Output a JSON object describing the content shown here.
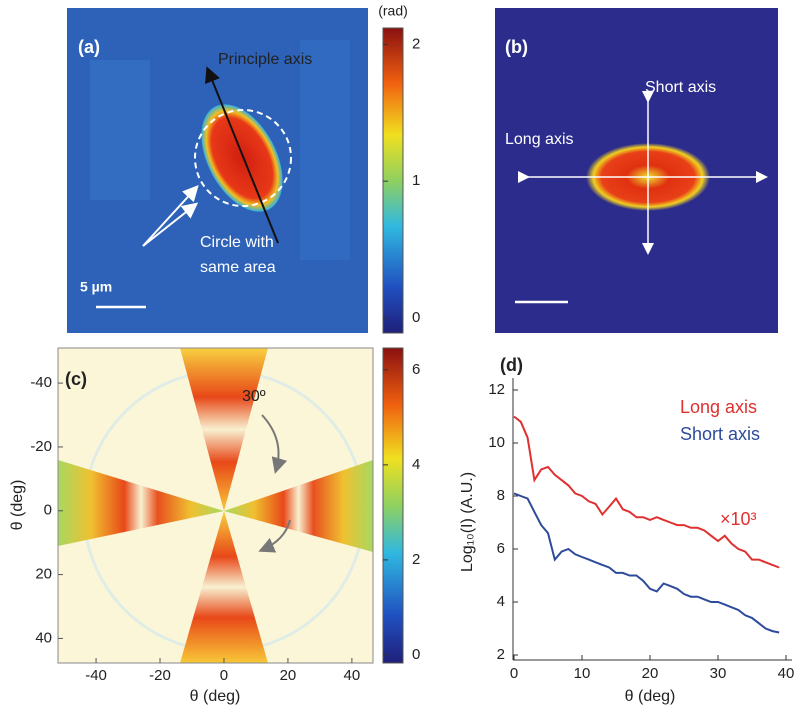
{
  "chart_data": [
    {
      "type": "image",
      "label": "(a)",
      "annotations": [
        "Principle axis",
        "Circle with",
        "same area"
      ],
      "scale_label": "5 µm",
      "colorbar": {
        "label": "(rad)",
        "lim": [
          -0.11,
          2.12
        ],
        "ticks": [
          0,
          1,
          2
        ]
      }
    },
    {
      "type": "image",
      "label": "(b)",
      "annotations": [
        "Short axis",
        "Long axis"
      ]
    },
    {
      "type": "heatmap",
      "label": "(c)",
      "xlabel": "θ (deg)",
      "ylabel": "θ (deg)",
      "xlim": [
        -51.9,
        46.6
      ],
      "ylim": [
        -51,
        47.7
      ],
      "xticks": [
        -40,
        -20,
        0,
        20,
        40
      ],
      "yticks": [
        -40,
        -20,
        0,
        20,
        40
      ],
      "annotation": "30º",
      "colorbar": {
        "lim": [
          -0.17,
          6.46
        ],
        "ticks": [
          0,
          2,
          4,
          6
        ]
      }
    },
    {
      "type": "line",
      "label": "(d)",
      "xlabel": "θ (deg)",
      "ylabel": "Log₁₀(I) (A.U.)",
      "annotation": "×10³",
      "xlim": [
        0,
        40
      ],
      "ylim": [
        2,
        12
      ],
      "xticks": [
        0,
        10,
        20,
        30,
        40
      ],
      "yticks": [
        2,
        4,
        6,
        8,
        10,
        12
      ],
      "x": [
        0,
        1,
        2,
        3,
        4,
        5,
        6,
        7,
        8,
        9,
        10,
        11,
        12,
        13,
        14,
        15,
        16,
        17,
        18,
        19,
        20,
        21,
        22,
        23,
        24,
        25,
        26,
        27,
        28,
        29,
        30,
        31,
        32,
        33,
        34,
        35,
        36,
        37,
        38,
        39
      ],
      "series": [
        {
          "name": "Long axis",
          "color": "#e03030",
          "values": [
            11.0,
            10.8,
            10.2,
            8.6,
            9.0,
            9.1,
            8.8,
            8.6,
            8.4,
            8.1,
            8.0,
            7.8,
            7.7,
            7.3,
            7.6,
            7.9,
            7.5,
            7.4,
            7.2,
            7.2,
            7.1,
            7.2,
            7.1,
            7.0,
            6.9,
            6.9,
            6.8,
            6.8,
            6.7,
            6.5,
            6.3,
            6.5,
            6.2,
            6.0,
            5.9,
            5.6,
            5.6,
            5.5,
            5.4,
            5.3
          ]
        },
        {
          "name": "Short axis",
          "color": "#2e4b9b",
          "values": [
            8.1,
            8.0,
            7.9,
            7.4,
            6.9,
            6.6,
            5.6,
            5.9,
            6.0,
            5.8,
            5.7,
            5.6,
            5.5,
            5.4,
            5.3,
            5.1,
            5.1,
            5.0,
            5.0,
            4.8,
            4.5,
            4.4,
            4.7,
            4.6,
            4.5,
            4.3,
            4.2,
            4.2,
            4.1,
            4.0,
            4.0,
            3.9,
            3.8,
            3.7,
            3.5,
            3.4,
            3.2,
            3.0,
            2.9,
            2.85
          ]
        }
      ]
    }
  ]
}
